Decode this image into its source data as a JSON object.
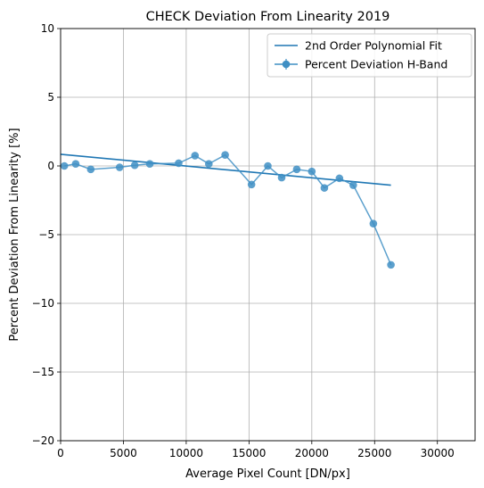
{
  "chart_data": {
    "type": "line",
    "title": "CHECK Deviation From Linearity 2019",
    "xlabel": "Average Pixel Count [DN/px]",
    "ylabel": "Percent Deviation From Linearity [%]",
    "xlim": [
      0,
      33000
    ],
    "ylim": [
      -20,
      10
    ],
    "xticks": [
      0,
      5000,
      10000,
      15000,
      20000,
      25000,
      30000
    ],
    "xtick_labels": [
      "0",
      "5000",
      "10000",
      "15000",
      "20000",
      "25000",
      "30000"
    ],
    "yticks": [
      10,
      5,
      0,
      -5,
      -10,
      -15,
      -20
    ],
    "ytick_labels": [
      "10",
      "5",
      "0",
      "−5",
      "−10",
      "−15",
      "−20"
    ],
    "grid": true,
    "legend_position": "top-right",
    "series": [
      {
        "name": "2nd Order Polynomial Fit",
        "kind": "line",
        "color": "#1f77b4",
        "x": [
          0,
          26300
        ],
        "y": [
          0.85,
          -1.4
        ]
      },
      {
        "name": "Percent Deviation H-Band",
        "kind": "line-markers",
        "color": "#3f8fc4",
        "x": [
          300,
          1200,
          2400,
          4700,
          5900,
          7100,
          9400,
          10700,
          11800,
          13100,
          15200,
          16500,
          17600,
          18800,
          20000,
          21000,
          22200,
          23300,
          24900,
          26300
        ],
        "y": [
          0.0,
          0.15,
          -0.25,
          -0.1,
          0.05,
          0.15,
          0.2,
          0.75,
          0.15,
          0.8,
          -1.35,
          0.0,
          -0.85,
          -0.25,
          -0.4,
          -1.6,
          -0.9,
          -1.4,
          -4.2,
          -7.2
        ]
      }
    ]
  }
}
